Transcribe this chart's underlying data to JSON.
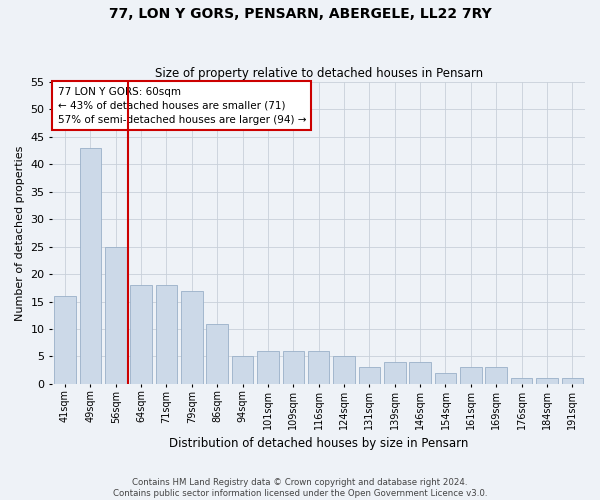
{
  "title": "77, LON Y GORS, PENSARN, ABERGELE, LL22 7RY",
  "subtitle": "Size of property relative to detached houses in Pensarn",
  "xlabel": "Distribution of detached houses by size in Pensarn",
  "ylabel": "Number of detached properties",
  "categories": [
    "41sqm",
    "49sqm",
    "56sqm",
    "64sqm",
    "71sqm",
    "79sqm",
    "86sqm",
    "94sqm",
    "101sqm",
    "109sqm",
    "116sqm",
    "124sqm",
    "131sqm",
    "139sqm",
    "146sqm",
    "154sqm",
    "161sqm",
    "169sqm",
    "176sqm",
    "184sqm",
    "191sqm"
  ],
  "values": [
    16,
    43,
    25,
    18,
    18,
    17,
    11,
    5,
    6,
    6,
    6,
    5,
    3,
    4,
    4,
    2,
    3,
    3,
    1,
    1,
    1
  ],
  "bar_color": "#ccd9e8",
  "bar_edgecolor": "#9ab0c8",
  "vline_x_index": 2,
  "vline_color": "#cc0000",
  "annotation_lines": [
    "77 LON Y GORS: 60sqm",
    "← 43% of detached houses are smaller (71)",
    "57% of semi-detached houses are larger (94) →"
  ],
  "annotation_box_color": "#cc0000",
  "ylim": [
    0,
    55
  ],
  "yticks": [
    0,
    5,
    10,
    15,
    20,
    25,
    30,
    35,
    40,
    45,
    50,
    55
  ],
  "footer_line1": "Contains HM Land Registry data © Crown copyright and database right 2024.",
  "footer_line2": "Contains public sector information licensed under the Open Government Licence v3.0.",
  "bg_color": "#eef2f7",
  "grid_color": "#c8d0da"
}
